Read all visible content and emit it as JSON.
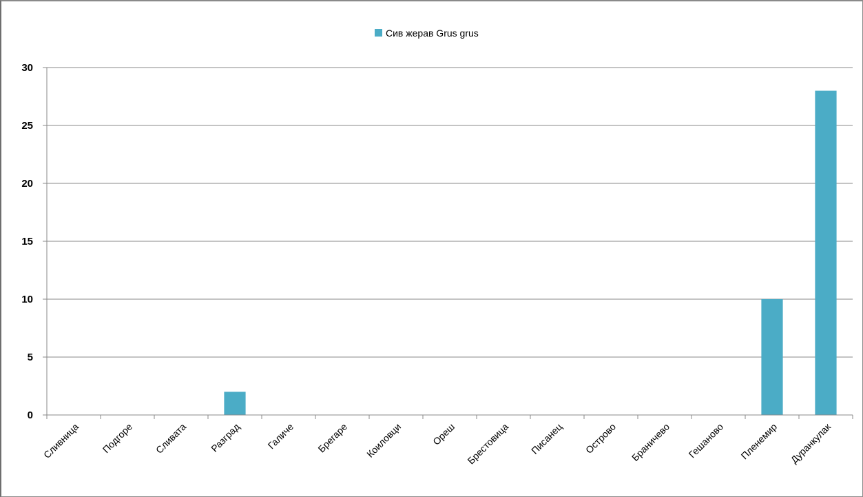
{
  "chart_data": {
    "type": "bar",
    "categories": [
      "Сливница",
      "Подгоре",
      "Сливата",
      "Разград",
      "Галиче",
      "Брегаре",
      "Коиловци",
      "Ореш",
      "Брестовица",
      "Писанец",
      "Острово",
      "Браничево",
      "Гешаново",
      "Пленемир",
      "Дуранкулак"
    ],
    "series": [
      {
        "name": "Сив жерав Grus grus",
        "values": [
          0,
          0,
          0,
          2,
          0,
          0,
          0,
          0,
          0,
          0,
          0,
          0,
          0,
          10,
          28
        ]
      }
    ],
    "ylim": [
      0,
      30
    ],
    "yticks": [
      0,
      5,
      10,
      15,
      20,
      25,
      30
    ],
    "grid": true,
    "legend": "top-center",
    "bar_color": "#4bacc6"
  }
}
